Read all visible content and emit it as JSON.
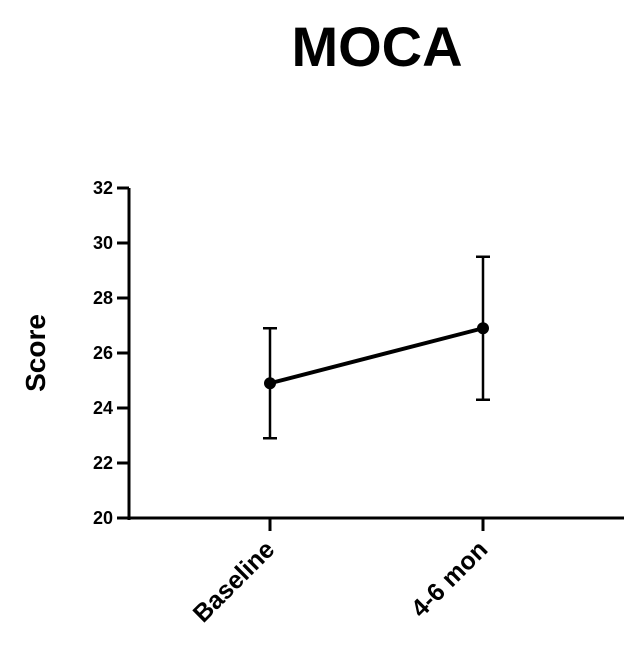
{
  "chart_data": {
    "type": "line",
    "title": "MOCA",
    "xlabel": "",
    "ylabel": "Score",
    "categories": [
      "Baseline",
      "4-6 mon"
    ],
    "series": [
      {
        "values": [
          24.9,
          26.9
        ],
        "error_low": [
          22.9,
          24.3
        ],
        "error_high": [
          26.9,
          29.5
        ]
      }
    ],
    "ylim": [
      20,
      32
    ],
    "yticks": [
      "20",
      "22",
      "24",
      "26",
      "28",
      "30",
      "32"
    ],
    "grid": false,
    "legend": "none",
    "line_color": "#000000"
  }
}
